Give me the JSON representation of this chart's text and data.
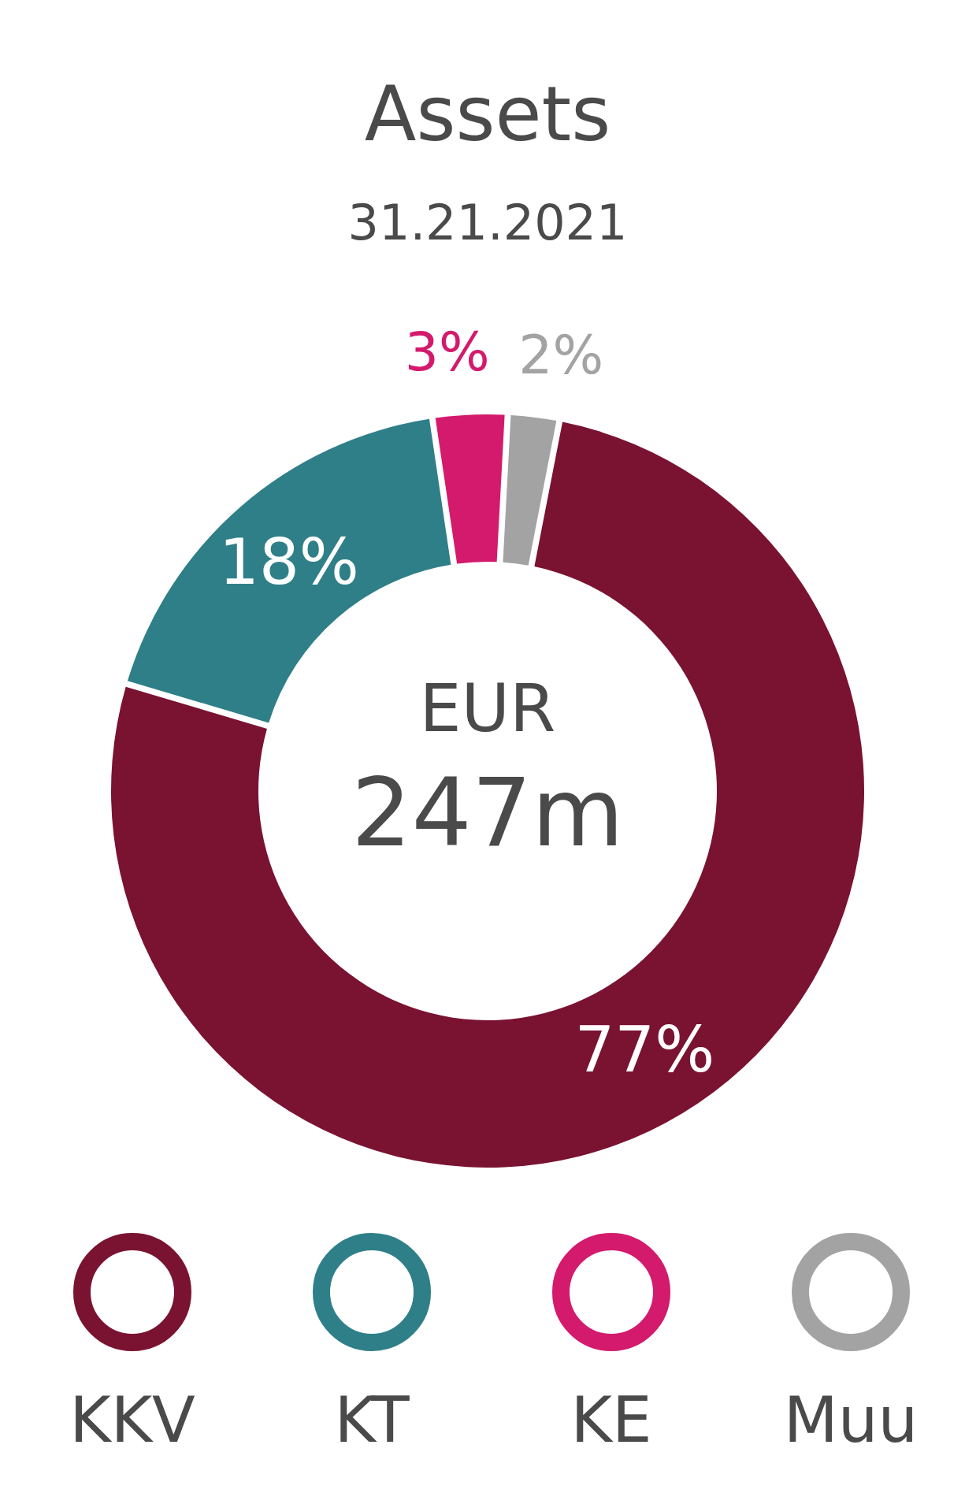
{
  "chart_data": {
    "type": "donut",
    "title": "Assets",
    "subtitle": "31.21.2021",
    "categories": [
      "KKV",
      "KT",
      "KE",
      "Muu"
    ],
    "values": [
      77,
      18,
      3,
      2
    ],
    "colors": [
      "#7a1232",
      "#2f7f88",
      "#d41a6c",
      "#a3a3a3"
    ],
    "value_labels": [
      "77%",
      "18%",
      "3%",
      "2%"
    ],
    "legend": "bottom",
    "annotations": [
      "EUR",
      "247m"
    ]
  }
}
